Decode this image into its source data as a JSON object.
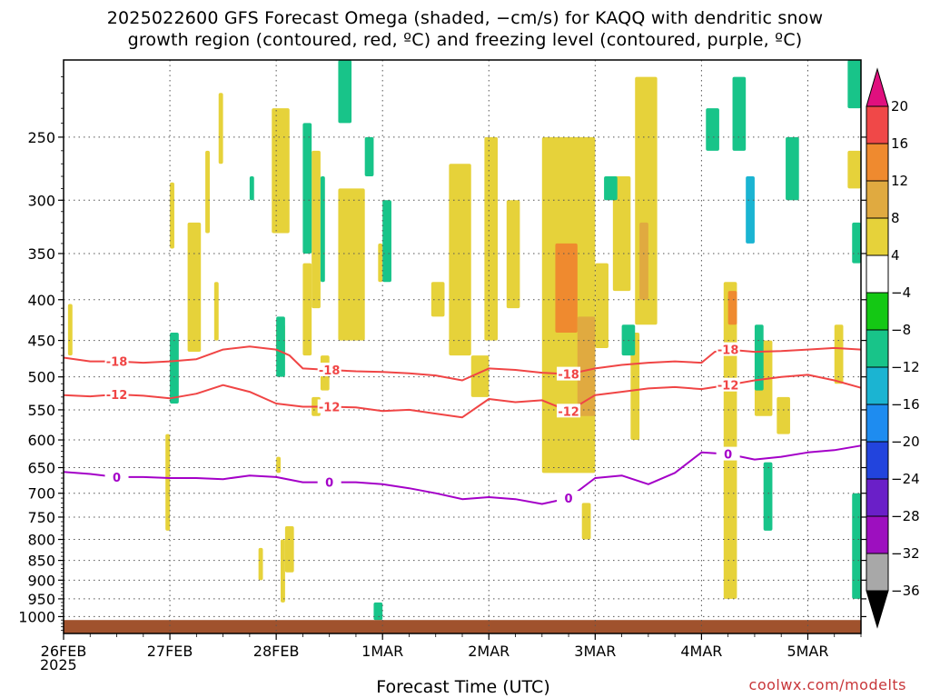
{
  "title_line1": "2025022600 GFS Forecast Omega (shaded, −cm/s) for KAQQ with dendritic snow",
  "title_line2": "growth region (contoured, red, ºC) and freezing level (contoured, purple, ºC)",
  "xlabel": "Forecast Time (UTC)",
  "year_label": "2025",
  "credit": "coolwx.com/modelts",
  "chart_data": {
    "type": "heatmap",
    "y_axis": {
      "quantity": "pressure (hPa)",
      "reversed": true,
      "range": [
        200,
        1050
      ],
      "ticks": [
        250,
        300,
        350,
        400,
        450,
        500,
        550,
        600,
        650,
        700,
        750,
        800,
        850,
        900,
        950,
        1000
      ]
    },
    "x_axis": {
      "quantity": "forecast time (UTC)",
      "range": [
        "2025-02-26T00",
        "2025-03-05T12"
      ],
      "tick_labels": [
        "26FEB",
        "27FEB",
        "28FEB",
        "1MAR",
        "2MAR",
        "3MAR",
        "4MAR",
        "5MAR"
      ],
      "tick_dates": [
        "2025-02-26T00",
        "2025-02-27T00",
        "2025-02-28T00",
        "2025-03-01T00",
        "2025-03-02T00",
        "2025-03-03T00",
        "2025-03-04T00",
        "2025-03-05T00"
      ]
    },
    "grid": true,
    "colorbar": {
      "labels": [
        "20",
        "16",
        "12",
        "8",
        "4",
        "−4",
        "−8",
        "−12",
        "−16",
        "−20",
        "−24",
        "−28",
        "−32",
        "−36"
      ],
      "bins": [
        {
          "from": 16,
          "to": 20,
          "color": "#f04848"
        },
        {
          "from": 12,
          "to": 16,
          "color": "#ef8a2f"
        },
        {
          "from": 8,
          "to": 12,
          "color": "#e0aa40"
        },
        {
          "from": 4,
          "to": 8,
          "color": "#e6d23a"
        },
        {
          "from": -4,
          "to": 4,
          "color": "#ffffff"
        },
        {
          "from": -8,
          "to": -4,
          "color": "#14c814"
        },
        {
          "from": -12,
          "to": -8,
          "color": "#18c489"
        },
        {
          "from": -16,
          "to": -12,
          "color": "#1bb4d2"
        },
        {
          "from": -20,
          "to": -16,
          "color": "#1e8cf0"
        },
        {
          "from": -24,
          "to": -20,
          "color": "#2244dd"
        },
        {
          "from": -28,
          "to": -24,
          "color": "#6a1fc8"
        },
        {
          "from": -32,
          "to": -28,
          "color": "#9d0fbf"
        },
        {
          "from": -36,
          "to": -32,
          "color": "#a8a8a8"
        }
      ],
      "top_arrow_color": "#e0107e",
      "bottom_arrow_color": "#000000"
    },
    "contours": [
      {
        "label": "-18",
        "color": "#f04545",
        "points": [
          [
            "2025-02-26T00",
            473
          ],
          [
            "2025-02-26T06",
            478
          ],
          [
            "2025-02-26T12",
            478
          ],
          [
            "2025-02-26T18",
            480
          ],
          [
            "2025-02-27T00",
            478
          ],
          [
            "2025-02-27T06",
            475
          ],
          [
            "2025-02-27T12",
            462
          ],
          [
            "2025-02-27T18",
            458
          ],
          [
            "2025-02-28T00",
            462
          ],
          [
            "2025-02-28T03",
            470
          ],
          [
            "2025-02-28T06",
            488
          ],
          [
            "2025-02-28T12",
            490
          ],
          [
            "2025-02-28T18",
            492
          ],
          [
            "2025-03-01T00",
            493
          ],
          [
            "2025-03-01T06",
            495
          ],
          [
            "2025-03-01T12",
            498
          ],
          [
            "2025-03-01T18",
            505
          ],
          [
            "2025-03-02T00",
            488
          ],
          [
            "2025-03-02T06",
            490
          ],
          [
            "2025-03-02T12",
            494
          ],
          [
            "2025-03-02T18",
            496
          ],
          [
            "2025-03-03T00",
            488
          ],
          [
            "2025-03-03T06",
            483
          ],
          [
            "2025-03-03T12",
            480
          ],
          [
            "2025-03-03T18",
            478
          ],
          [
            "2025-03-04T00",
            480
          ],
          [
            "2025-03-04T03",
            465
          ],
          [
            "2025-03-04T06",
            462
          ],
          [
            "2025-03-04T12",
            465
          ],
          [
            "2025-03-04T18",
            464
          ],
          [
            "2025-03-05T00",
            462
          ],
          [
            "2025-03-05T06",
            460
          ],
          [
            "2025-03-05T12",
            462
          ]
        ]
      },
      {
        "label": "-12",
        "color": "#f04545",
        "points": [
          [
            "2025-02-26T00",
            527
          ],
          [
            "2025-02-26T06",
            529
          ],
          [
            "2025-02-26T12",
            526
          ],
          [
            "2025-02-26T18",
            528
          ],
          [
            "2025-02-27T00",
            532
          ],
          [
            "2025-02-27T06",
            525
          ],
          [
            "2025-02-27T12",
            512
          ],
          [
            "2025-02-27T18",
            522
          ],
          [
            "2025-02-28T00",
            540
          ],
          [
            "2025-02-28T06",
            545
          ],
          [
            "2025-02-28T12",
            545
          ],
          [
            "2025-02-28T18",
            546
          ],
          [
            "2025-03-01T00",
            552
          ],
          [
            "2025-03-01T06",
            550
          ],
          [
            "2025-03-01T12",
            556
          ],
          [
            "2025-03-01T18",
            562
          ],
          [
            "2025-03-02T00",
            533
          ],
          [
            "2025-03-02T06",
            538
          ],
          [
            "2025-03-02T12",
            535
          ],
          [
            "2025-03-02T18",
            552
          ],
          [
            "2025-03-03T00",
            527
          ],
          [
            "2025-03-03T06",
            522
          ],
          [
            "2025-03-03T12",
            517
          ],
          [
            "2025-03-03T18",
            515
          ],
          [
            "2025-03-04T00",
            518
          ],
          [
            "2025-03-04T03",
            515
          ],
          [
            "2025-03-04T06",
            512
          ],
          [
            "2025-03-04T12",
            505
          ],
          [
            "2025-03-04T18",
            500
          ],
          [
            "2025-03-05T00",
            497
          ],
          [
            "2025-03-05T06",
            505
          ],
          [
            "2025-03-05T12",
            516
          ]
        ]
      },
      {
        "label": "0",
        "color": "#a400c8",
        "points": [
          [
            "2025-02-26T00",
            658
          ],
          [
            "2025-02-26T06",
            662
          ],
          [
            "2025-02-26T12",
            668
          ],
          [
            "2025-02-26T18",
            668
          ],
          [
            "2025-02-27T00",
            670
          ],
          [
            "2025-02-27T06",
            670
          ],
          [
            "2025-02-27T12",
            672
          ],
          [
            "2025-02-27T18",
            665
          ],
          [
            "2025-02-28T00",
            668
          ],
          [
            "2025-02-28T06",
            678
          ],
          [
            "2025-02-28T12",
            678
          ],
          [
            "2025-02-28T18",
            678
          ],
          [
            "2025-03-01T00",
            682
          ],
          [
            "2025-03-01T06",
            690
          ],
          [
            "2025-03-01T12",
            700
          ],
          [
            "2025-03-01T18",
            712
          ],
          [
            "2025-03-02T00",
            708
          ],
          [
            "2025-03-02T06",
            712
          ],
          [
            "2025-03-02T12",
            722
          ],
          [
            "2025-03-02T18",
            710
          ],
          [
            "2025-03-03T00",
            670
          ],
          [
            "2025-03-03T06",
            665
          ],
          [
            "2025-03-03T12",
            682
          ],
          [
            "2025-03-03T18",
            660
          ],
          [
            "2025-03-04T00",
            622
          ],
          [
            "2025-03-04T06",
            625
          ],
          [
            "2025-03-04T12",
            635
          ],
          [
            "2025-03-04T18",
            630
          ],
          [
            "2025-03-05T00",
            622
          ],
          [
            "2025-03-05T06",
            618
          ],
          [
            "2025-03-05T12",
            610
          ]
        ]
      }
    ],
    "omega_regions": [
      {
        "bin": 4,
        "x": [
          "2025-02-26T01",
          "2025-02-26T02"
        ],
        "p": [
          405,
          470
        ]
      },
      {
        "bin": 4,
        "x": [
          "2025-02-27T00",
          "2025-02-27T01"
        ],
        "p": [
          285,
          345
        ]
      },
      {
        "bin": 4,
        "x": [
          "2025-02-27T04",
          "2025-02-27T07"
        ],
        "p": [
          320,
          465
        ]
      },
      {
        "bin": 4,
        "x": [
          "2025-02-27T08",
          "2025-02-27T09"
        ],
        "p": [
          260,
          330
        ]
      },
      {
        "bin": 4,
        "x": [
          "2025-02-27T10",
          "2025-02-27T11"
        ],
        "p": [
          380,
          450
        ]
      },
      {
        "bin": 4,
        "x": [
          "2025-02-27T11",
          "2025-02-27T12"
        ],
        "p": [
          220,
          270
        ]
      },
      {
        "bin": 4,
        "x": [
          "2025-02-27T23",
          "2025-02-28T03"
        ],
        "p": [
          230,
          330
        ]
      },
      {
        "bin": 4,
        "x": [
          "2025-02-28T00",
          "2025-02-28T02"
        ],
        "p": [
          430,
          470
        ]
      },
      {
        "bin": 4,
        "x": [
          "2025-02-28T06",
          "2025-02-28T08"
        ],
        "p": [
          360,
          470
        ]
      },
      {
        "bin": 4,
        "x": [
          "2025-02-28T08",
          "2025-02-28T10"
        ],
        "p": [
          260,
          410
        ]
      },
      {
        "bin": 4,
        "x": [
          "2025-02-28T08",
          "2025-02-28T10"
        ],
        "p": [
          530,
          560
        ]
      },
      {
        "bin": 4,
        "x": [
          "2025-02-28T10",
          "2025-02-28T12"
        ],
        "p": [
          470,
          520
        ]
      },
      {
        "bin": 4,
        "x": [
          "2025-02-28T14",
          "2025-02-28T20"
        ],
        "p": [
          290,
          450
        ]
      },
      {
        "bin": 4,
        "x": [
          "2025-02-28T23",
          "2025-03-01T00"
        ],
        "p": [
          340,
          380
        ]
      },
      {
        "bin": 4,
        "x": [
          "2025-03-01T11",
          "2025-03-01T14"
        ],
        "p": [
          380,
          420
        ]
      },
      {
        "bin": 4,
        "x": [
          "2025-03-01T15",
          "2025-03-01T20"
        ],
        "p": [
          270,
          470
        ]
      },
      {
        "bin": 4,
        "x": [
          "2025-03-01T20",
          "2025-03-02T00"
        ],
        "p": [
          470,
          530
        ]
      },
      {
        "bin": 4,
        "x": [
          "2025-03-01T23",
          "2025-03-02T02"
        ],
        "p": [
          250,
          450
        ]
      },
      {
        "bin": 4,
        "x": [
          "2025-03-02T04",
          "2025-03-02T07"
        ],
        "p": [
          300,
          410
        ]
      },
      {
        "bin": 4,
        "x": [
          "2025-03-02T12",
          "2025-03-03T00"
        ],
        "p": [
          250,
          660
        ]
      },
      {
        "bin": 12,
        "x": [
          "2025-03-02T15",
          "2025-03-02T20"
        ],
        "p": [
          340,
          440
        ]
      },
      {
        "bin": 8,
        "x": [
          "2025-03-02T20",
          "2025-03-03T00"
        ],
        "p": [
          420,
          560
        ]
      },
      {
        "bin": 4,
        "x": [
          "2025-03-03T00",
          "2025-03-03T03"
        ],
        "p": [
          360,
          460
        ]
      },
      {
        "bin": 4,
        "x": [
          "2025-03-03T04",
          "2025-03-03T08"
        ],
        "p": [
          280,
          390
        ]
      },
      {
        "bin": 4,
        "x": [
          "2025-03-03T09",
          "2025-03-03T14"
        ],
        "p": [
          210,
          430
        ]
      },
      {
        "bin": 8,
        "x": [
          "2025-03-03T10",
          "2025-03-03T12"
        ],
        "p": [
          320,
          400
        ]
      },
      {
        "bin": 4,
        "x": [
          "2025-03-03T08",
          "2025-03-03T10"
        ],
        "p": [
          440,
          600
        ]
      },
      {
        "bin": 4,
        "x": [
          "2025-03-02T21",
          "2025-03-02T23"
        ],
        "p": [
          720,
          800
        ]
      },
      {
        "bin": 4,
        "x": [
          "2025-03-04T05",
          "2025-03-04T08"
        ],
        "p": [
          380,
          950
        ]
      },
      {
        "bin": 12,
        "x": [
          "2025-03-04T06",
          "2025-03-04T08"
        ],
        "p": [
          390,
          430
        ]
      },
      {
        "bin": 4,
        "x": [
          "2025-03-04T12",
          "2025-03-04T16"
        ],
        "p": [
          450,
          560
        ]
      },
      {
        "bin": 4,
        "x": [
          "2025-03-04T17",
          "2025-03-04T20"
        ],
        "p": [
          530,
          590
        ]
      },
      {
        "bin": 4,
        "x": [
          "2025-03-05T06",
          "2025-03-05T08"
        ],
        "p": [
          430,
          510
        ]
      },
      {
        "bin": 4,
        "x": [
          "2025-03-05T09",
          "2025-03-05T12"
        ],
        "p": [
          260,
          290
        ]
      },
      {
        "bin": 4,
        "x": [
          "2025-02-26T23",
          "2025-02-27T00"
        ],
        "p": [
          590,
          780
        ]
      },
      {
        "bin": 4,
        "x": [
          "2025-02-28T00",
          "2025-02-28T01"
        ],
        "p": [
          630,
          660
        ]
      },
      {
        "bin": 4,
        "x": [
          "2025-02-27T20",
          "2025-02-27T21"
        ],
        "p": [
          820,
          900
        ]
      },
      {
        "bin": 4,
        "x": [
          "2025-02-28T01",
          "2025-02-28T02"
        ],
        "p": [
          800,
          960
        ]
      },
      {
        "bin": 4,
        "x": [
          "2025-02-28T02",
          "2025-02-28T04"
        ],
        "p": [
          770,
          880
        ]
      },
      {
        "bin": -8,
        "x": [
          "2025-02-27T18",
          "2025-02-27T19"
        ],
        "p": [
          280,
          300
        ]
      },
      {
        "bin": -8,
        "x": [
          "2025-02-28T00",
          "2025-02-28T02"
        ],
        "p": [
          420,
          500
        ]
      },
      {
        "bin": -8,
        "x": [
          "2025-02-28T06",
          "2025-02-28T08"
        ],
        "p": [
          240,
          350
        ]
      },
      {
        "bin": -8,
        "x": [
          "2025-02-28T10",
          "2025-02-28T11"
        ],
        "p": [
          280,
          380
        ]
      },
      {
        "bin": -8,
        "x": [
          "2025-02-28T14",
          "2025-02-28T17"
        ],
        "p": [
          200,
          240
        ]
      },
      {
        "bin": -8,
        "x": [
          "2025-02-28T20",
          "2025-02-28T22"
        ],
        "p": [
          250,
          280
        ]
      },
      {
        "bin": -8,
        "x": [
          "2025-03-01T00",
          "2025-03-01T02"
        ],
        "p": [
          300,
          380
        ]
      },
      {
        "bin": -8,
        "x": [
          "2025-02-28T22",
          "2025-03-01T00"
        ],
        "p": [
          960,
          1010
        ]
      },
      {
        "bin": -8,
        "x": [
          "2025-02-27T00",
          "2025-02-27T02"
        ],
        "p": [
          440,
          540
        ]
      },
      {
        "bin": -8,
        "x": [
          "2025-03-03T06",
          "2025-03-03T09"
        ],
        "p": [
          430,
          470
        ]
      },
      {
        "bin": -8,
        "x": [
          "2025-03-03T02",
          "2025-03-03T05"
        ],
        "p": [
          280,
          300
        ]
      },
      {
        "bin": -8,
        "x": [
          "2025-03-04T01",
          "2025-03-04T04"
        ],
        "p": [
          230,
          260
        ]
      },
      {
        "bin": -8,
        "x": [
          "2025-03-04T07",
          "2025-03-04T10"
        ],
        "p": [
          210,
          260
        ]
      },
      {
        "bin": -12,
        "x": [
          "2025-03-04T10",
          "2025-03-04T12"
        ],
        "p": [
          280,
          340
        ]
      },
      {
        "bin": -8,
        "x": [
          "2025-03-04T12",
          "2025-03-04T14"
        ],
        "p": [
          430,
          520
        ]
      },
      {
        "bin": -8,
        "x": [
          "2025-03-04T14",
          "2025-03-04T16"
        ],
        "p": [
          640,
          780
        ]
      },
      {
        "bin": -8,
        "x": [
          "2025-03-04T19",
          "2025-03-04T22"
        ],
        "p": [
          250,
          300
        ]
      },
      {
        "bin": -8,
        "x": [
          "2025-03-05T09",
          "2025-03-05T12"
        ],
        "p": [
          200,
          230
        ]
      },
      {
        "bin": -8,
        "x": [
          "2025-03-05T10",
          "2025-03-05T12"
        ],
        "p": [
          320,
          360
        ]
      },
      {
        "bin": -8,
        "x": [
          "2025-03-05T10",
          "2025-03-05T12"
        ],
        "p": [
          700,
          950
        ]
      }
    ],
    "surface": {
      "color": "#a0522d",
      "p": [
        1010,
        1050
      ]
    }
  }
}
